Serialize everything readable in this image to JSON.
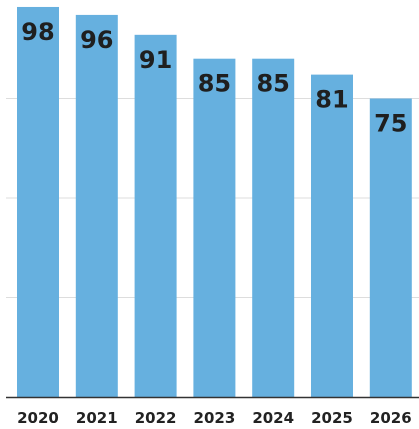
{
  "chart_data": {
    "type": "bar",
    "categories": [
      "2020",
      "2021",
      "2022",
      "2023",
      "2024",
      "2025",
      "2026"
    ],
    "values": [
      98,
      96,
      91,
      85,
      85,
      81,
      75
    ],
    "title": "",
    "xlabel": "",
    "ylabel": "",
    "ylim": [
      0,
      100
    ],
    "grid": true,
    "bar_color": "#66b0df",
    "grid_color": "#dddddd",
    "axis_color": "#333333",
    "label_color": "#1f1f1f"
  }
}
